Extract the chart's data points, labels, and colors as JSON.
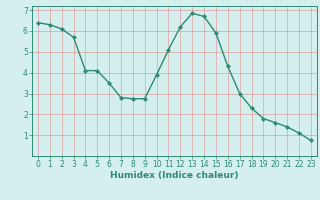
{
  "xlabel": "Humidex (Indice chaleur)",
  "x": [
    0,
    1,
    2,
    3,
    4,
    5,
    6,
    7,
    8,
    9,
    10,
    11,
    12,
    13,
    14,
    15,
    16,
    17,
    18,
    19,
    20,
    21,
    22,
    23
  ],
  "y": [
    6.4,
    6.3,
    6.1,
    5.7,
    4.1,
    4.1,
    3.5,
    2.8,
    2.75,
    2.75,
    3.9,
    5.1,
    6.2,
    6.85,
    6.7,
    5.9,
    4.3,
    3.0,
    2.3,
    1.8,
    1.6,
    1.4,
    1.1,
    0.75
  ],
  "line_color": "#2d8b74",
  "marker_color": "#2d8b74",
  "bg_color": "#d5eeee",
  "grid_color": "#e08080",
  "tick_color": "#2d8b74",
  "label_color": "#2d8b74",
  "spine_color": "#2d8b74",
  "ylim": [
    0,
    7.2
  ],
  "xlim": [
    -0.5,
    23.5
  ],
  "yticks": [
    1,
    2,
    3,
    4,
    5,
    6,
    7
  ],
  "xticks": [
    0,
    1,
    2,
    3,
    4,
    5,
    6,
    7,
    8,
    9,
    10,
    11,
    12,
    13,
    14,
    15,
    16,
    17,
    18,
    19,
    20,
    21,
    22,
    23
  ],
  "label_fontsize": 6.5,
  "tick_fontsize": 5.5
}
